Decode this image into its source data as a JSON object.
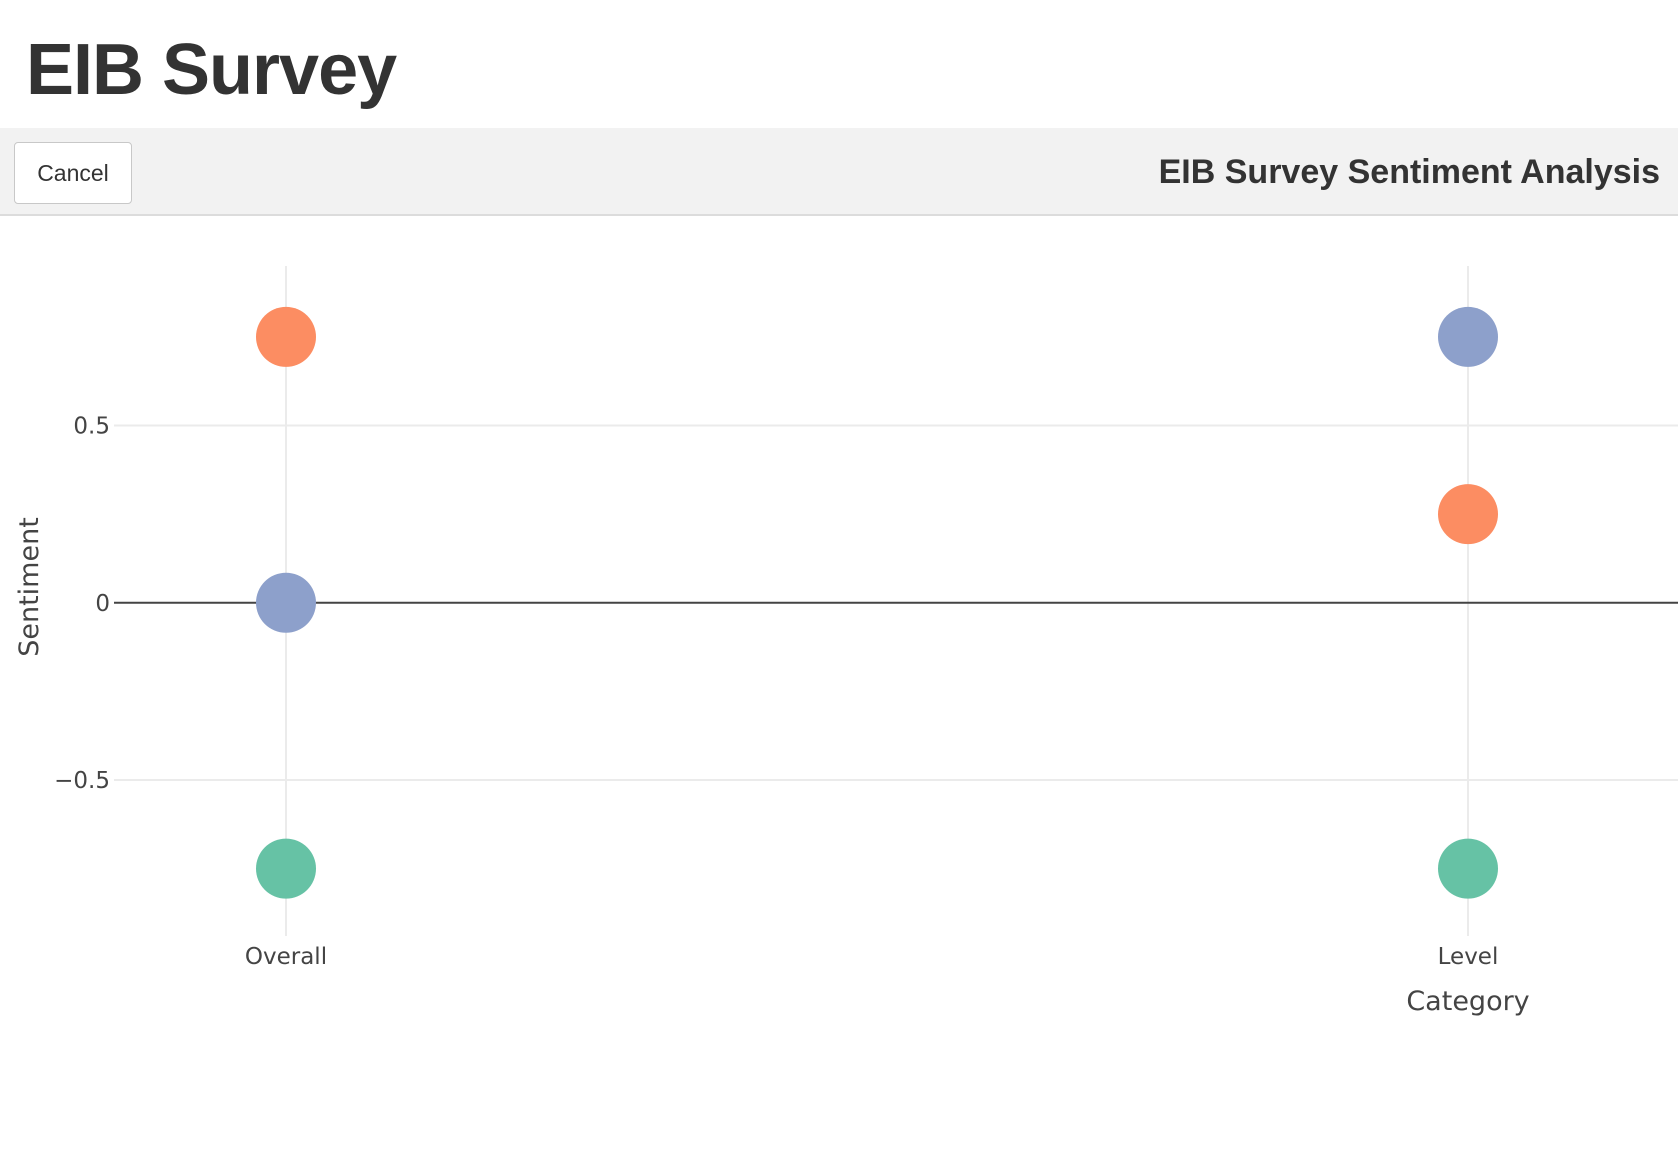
{
  "page": {
    "title": "EIB Survey"
  },
  "toolbar": {
    "cancel_label": "Cancel",
    "title": "EIB Survey Sentiment Analysis"
  },
  "chart_data": {
    "type": "scatter",
    "title": "",
    "xlabel": "Category",
    "ylabel": "Sentiment",
    "categories": [
      "Overall",
      "Level"
    ],
    "ylim": [
      -0.94,
      0.95
    ],
    "yticks": [
      {
        "value": 0.5,
        "label": "0.5"
      },
      {
        "value": 0,
        "label": "0"
      },
      {
        "value": -0.5,
        "label": "−0.5"
      }
    ],
    "grid": true,
    "zeroline": true,
    "legend": "none",
    "points": [
      {
        "category": "Overall",
        "y": 0.75,
        "color": "#fc8d62"
      },
      {
        "category": "Overall",
        "y": 0.0,
        "color": "#8da0cb"
      },
      {
        "category": "Overall",
        "y": -0.75,
        "color": "#66c2a5"
      },
      {
        "category": "Level",
        "y": 0.75,
        "color": "#8da0cb"
      },
      {
        "category": "Level",
        "y": 0.25,
        "color": "#fc8d62"
      },
      {
        "category": "Level",
        "y": -0.75,
        "color": "#66c2a5"
      }
    ]
  }
}
